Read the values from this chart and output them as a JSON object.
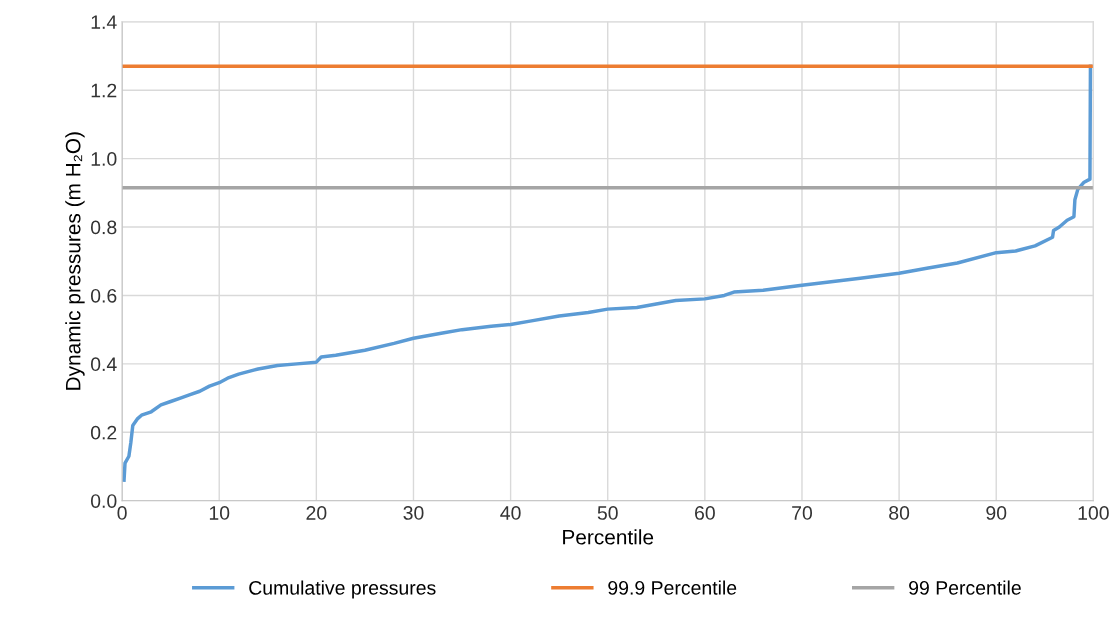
{
  "chart_data": {
    "type": "line",
    "xlabel": "Percentile",
    "ylabel": "Dynamic pressures (m H₂O)",
    "xlim": [
      0,
      100
    ],
    "xticks": [
      0,
      10,
      20,
      30,
      40,
      50,
      60,
      70,
      80,
      90,
      100
    ],
    "ylim": [
      0,
      1.4
    ],
    "yticks": [
      {
        "value": 0,
        "label": "0.0"
      },
      {
        "value": 0.2,
        "label": "0.2"
      },
      {
        "value": 0.4,
        "label": "0.4"
      },
      {
        "value": 0.6,
        "label": "0.6"
      },
      {
        "value": 0.8,
        "label": "0.8"
      },
      {
        "value": 1.0,
        "label": "1.0"
      },
      {
        "value": 1.2,
        "label": "1.2"
      },
      {
        "value": 1.4,
        "label": "1.4"
      }
    ],
    "grid": true,
    "legend": "bottom",
    "marker": "none",
    "line_style": "solid",
    "series": [
      {
        "name": "Cumulative pressures",
        "color": "#5b9bd5",
        "x": [
          0.2,
          0.3,
          0.7,
          0.9,
          1.1,
          1.6,
          2,
          3,
          4,
          5,
          6,
          7,
          8,
          9,
          10,
          11,
          12,
          14,
          16,
          18,
          20,
          20.5,
          22,
          25,
          28,
          30,
          33,
          35,
          38,
          40,
          42,
          45,
          48,
          50,
          53,
          55,
          57,
          60,
          62,
          63,
          66,
          70,
          73,
          76,
          80,
          83,
          86,
          90,
          92,
          94,
          95.8,
          95.9,
          96.5,
          97.3,
          98,
          98.1,
          98.4,
          99,
          99.65,
          99.7
        ],
        "values": [
          0.06,
          0.11,
          0.13,
          0.17,
          0.22,
          0.24,
          0.25,
          0.26,
          0.28,
          0.29,
          0.3,
          0.31,
          0.32,
          0.335,
          0.345,
          0.36,
          0.37,
          0.385,
          0.395,
          0.4,
          0.405,
          0.42,
          0.425,
          0.44,
          0.46,
          0.475,
          0.49,
          0.5,
          0.51,
          0.515,
          0.525,
          0.54,
          0.55,
          0.56,
          0.565,
          0.575,
          0.585,
          0.59,
          0.6,
          0.61,
          0.615,
          0.63,
          0.64,
          0.65,
          0.665,
          0.68,
          0.695,
          0.725,
          0.73,
          0.745,
          0.77,
          0.79,
          0.8,
          0.82,
          0.83,
          0.88,
          0.91,
          0.93,
          0.94,
          1.27
        ]
      },
      {
        "name": "99.9 Percentile",
        "color": "#ed7d31",
        "x": [
          0,
          100
        ],
        "values": [
          1.27,
          1.27
        ]
      },
      {
        "name": "99 Percentile",
        "color": "#a5a5a5",
        "x": [
          0,
          100
        ],
        "values": [
          0.915,
          0.915
        ]
      }
    ]
  }
}
